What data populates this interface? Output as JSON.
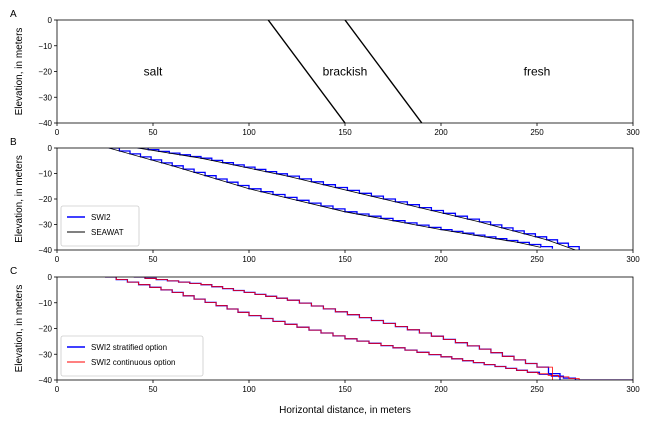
{
  "chart_data": [
    {
      "panel": "A",
      "type": "line",
      "ylabel": "Elevation, in meters",
      "xlabel": "",
      "xlim": [
        0,
        300
      ],
      "ylim": [
        -40,
        0
      ],
      "xticks": [
        0,
        50,
        100,
        150,
        200,
        250,
        300
      ],
      "yticks": [
        0,
        -10,
        -20,
        -30,
        -40
      ],
      "series": [
        {
          "color": "#000000",
          "x": [
            110,
            150
          ],
          "y": [
            0,
            -40
          ]
        },
        {
          "color": "#000000",
          "x": [
            150,
            190
          ],
          "y": [
            0,
            -40
          ]
        }
      ],
      "annotations": [
        {
          "text": "salt",
          "x": 50,
          "y": -20
        },
        {
          "text": "brackish",
          "x": 150,
          "y": -20
        },
        {
          "text": "fresh",
          "x": 250,
          "y": -20
        }
      ],
      "legend": null
    },
    {
      "panel": "B",
      "type": "line",
      "ylabel": "Elevation, in meters",
      "xlabel": "",
      "xlim": [
        0,
        300
      ],
      "ylim": [
        -40,
        0
      ],
      "xticks": [
        0,
        50,
        100,
        150,
        200,
        250,
        300
      ],
      "yticks": [
        0,
        -10,
        -20,
        -30,
        -40
      ],
      "legend_position": "lower-left",
      "series": [
        {
          "name": "SWI2",
          "color": "#0000ff",
          "stepped": true,
          "x": [
            27,
            60,
            100,
            150,
            200,
            240,
            258
          ],
          "y": [
            0,
            -7,
            -16,
            -25,
            -32,
            -37,
            -39.5
          ]
        },
        {
          "name": "SWI2",
          "color": "#0000ff",
          "stepped": true,
          "x": [
            42,
            75,
            120,
            170,
            220,
            255,
            272
          ],
          "y": [
            0,
            -4,
            -11,
            -20,
            -29,
            -36,
            -40
          ]
        },
        {
          "name": "SEAWAT",
          "color": "#000000",
          "x": [
            27,
            60,
            100,
            150,
            200,
            240,
            252
          ],
          "y": [
            0,
            -7,
            -16,
            -25,
            -32,
            -37,
            -39
          ]
        },
        {
          "name": "SEAWAT",
          "color": "#000000",
          "x": [
            42,
            75,
            120,
            170,
            220,
            255,
            270
          ],
          "y": [
            0,
            -4,
            -11,
            -20,
            -29,
            -36,
            -40
          ]
        }
      ]
    },
    {
      "panel": "C",
      "type": "line",
      "ylabel": "Elevation, in meters",
      "xlabel": "Horizontal distance, in meters",
      "xlim": [
        0,
        300
      ],
      "ylim": [
        -40,
        0
      ],
      "xticks": [
        0,
        50,
        100,
        150,
        200,
        250,
        300
      ],
      "yticks": [
        0,
        -10,
        -20,
        -30,
        -40
      ],
      "legend_position": "lower-left",
      "series": [
        {
          "name": "SWI2 stratified option",
          "color": "#0000ff",
          "stepped": true,
          "x": [
            25,
            60,
            100,
            150,
            200,
            245,
            270,
            300
          ],
          "y": [
            0,
            -6,
            -15,
            -24,
            -31,
            -37,
            -40,
            -40
          ]
        },
        {
          "name": "SWI2 stratified option",
          "color": "#0000ff",
          "stepped": true,
          "x": [
            40,
            75,
            120,
            170,
            220,
            250,
            262
          ],
          "y": [
            0,
            -3,
            -9,
            -18,
            -28,
            -35,
            -40
          ]
        },
        {
          "name": "SWI2 continuous option",
          "color": "#ff0000",
          "stepped": true,
          "x": [
            25,
            60,
            100,
            150,
            200,
            245,
            272,
            300
          ],
          "y": [
            0,
            -6,
            -15,
            -24,
            -31,
            -37,
            -40,
            -40
          ]
        },
        {
          "name": "SWI2 continuous option",
          "color": "#ff0000",
          "stepped": true,
          "x": [
            40,
            75,
            120,
            170,
            220,
            250,
            258
          ],
          "y": [
            0,
            -3,
            -9,
            -18,
            -28,
            -35,
            -40
          ]
        }
      ]
    }
  ]
}
